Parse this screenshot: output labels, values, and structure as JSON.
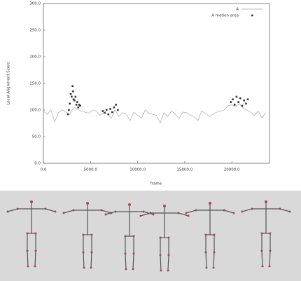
{
  "chart_data": {
    "type": "line",
    "y_label": "Local Alignment Score",
    "x_label": "frame",
    "xlim": [
      0,
      24000
    ],
    "ylim": [
      0,
      300
    ],
    "xticks": [
      {
        "value": 0,
        "label": "0.0"
      },
      {
        "value": 5000,
        "label": "5000.0"
      },
      {
        "value": 10000,
        "label": "10000.0"
      },
      {
        "value": 15000,
        "label": "15000.0"
      },
      {
        "value": 20000,
        "label": "20000.0"
      }
    ],
    "yticks": [
      {
        "value": 0,
        "label": "0.0"
      },
      {
        "value": 50,
        "label": "50.0"
      },
      {
        "value": 100,
        "label": "100.0"
      },
      {
        "value": 150,
        "label": "150.0"
      },
      {
        "value": 200,
        "label": "200.0"
      },
      {
        "value": 250,
        "label": "250.0"
      },
      {
        "value": 300,
        "label": "300.0"
      }
    ],
    "legend": "top-right",
    "series": [
      {
        "name": "A",
        "color": "#bbbbbb",
        "style": "line",
        "x": [
          0,
          400,
          800,
          1200,
          1600,
          2000,
          2400,
          2800,
          3200,
          3600,
          4000,
          4400,
          4800,
          5200,
          5600,
          6000,
          6400,
          6800,
          7200,
          7600,
          8000,
          8400,
          8800,
          9200,
          9600,
          10000,
          10400,
          10800,
          11200,
          11600,
          12000,
          12400,
          12800,
          13200,
          13600,
          14000,
          14400,
          14800,
          15200,
          15600,
          16000,
          16400,
          16800,
          17200,
          17600,
          18000,
          18400,
          18800,
          19200,
          19600,
          20000,
          20400,
          20800,
          21200,
          21600,
          22000,
          22400,
          22800,
          23200,
          23600
        ],
        "values": [
          98,
          92,
          100,
          78,
          95,
          100,
          96,
          92,
          105,
          102,
          98,
          96,
          94,
          100,
          98,
          90,
          95,
          92,
          85,
          100,
          88,
          95,
          92,
          80,
          96,
          90,
          85,
          100,
          94,
          92,
          90,
          76,
          95,
          88,
          98,
          92,
          84,
          96,
          95,
          90,
          88,
          80,
          98,
          94,
          88,
          92,
          96,
          98,
          100,
          108,
          110,
          106,
          112,
          104,
          100,
          96,
          90,
          98,
          85,
          95
        ]
      },
      {
        "name": "A motion area",
        "color": "#333333",
        "style": "points",
        "x": [
          2600,
          2700,
          2800,
          2900,
          3000,
          3100,
          3150,
          3200,
          3300,
          3400,
          3500,
          3600,
          3700,
          3800,
          3900,
          6300,
          6500,
          6700,
          6900,
          7100,
          7300,
          7500,
          7700,
          7900,
          19900,
          20100,
          20300,
          20500,
          20700,
          20900,
          21100,
          21300,
          21500,
          21700
        ],
        "values": [
          92,
          100,
          112,
          130,
          125,
          145,
          135,
          120,
          118,
          125,
          110,
          115,
          105,
          110,
          108,
          98,
          95,
          100,
          92,
          102,
          96,
          105,
          110,
          100,
          115,
          120,
          110,
          125,
          115,
          122,
          108,
          118,
          112,
          120
        ]
      }
    ]
  }
}
